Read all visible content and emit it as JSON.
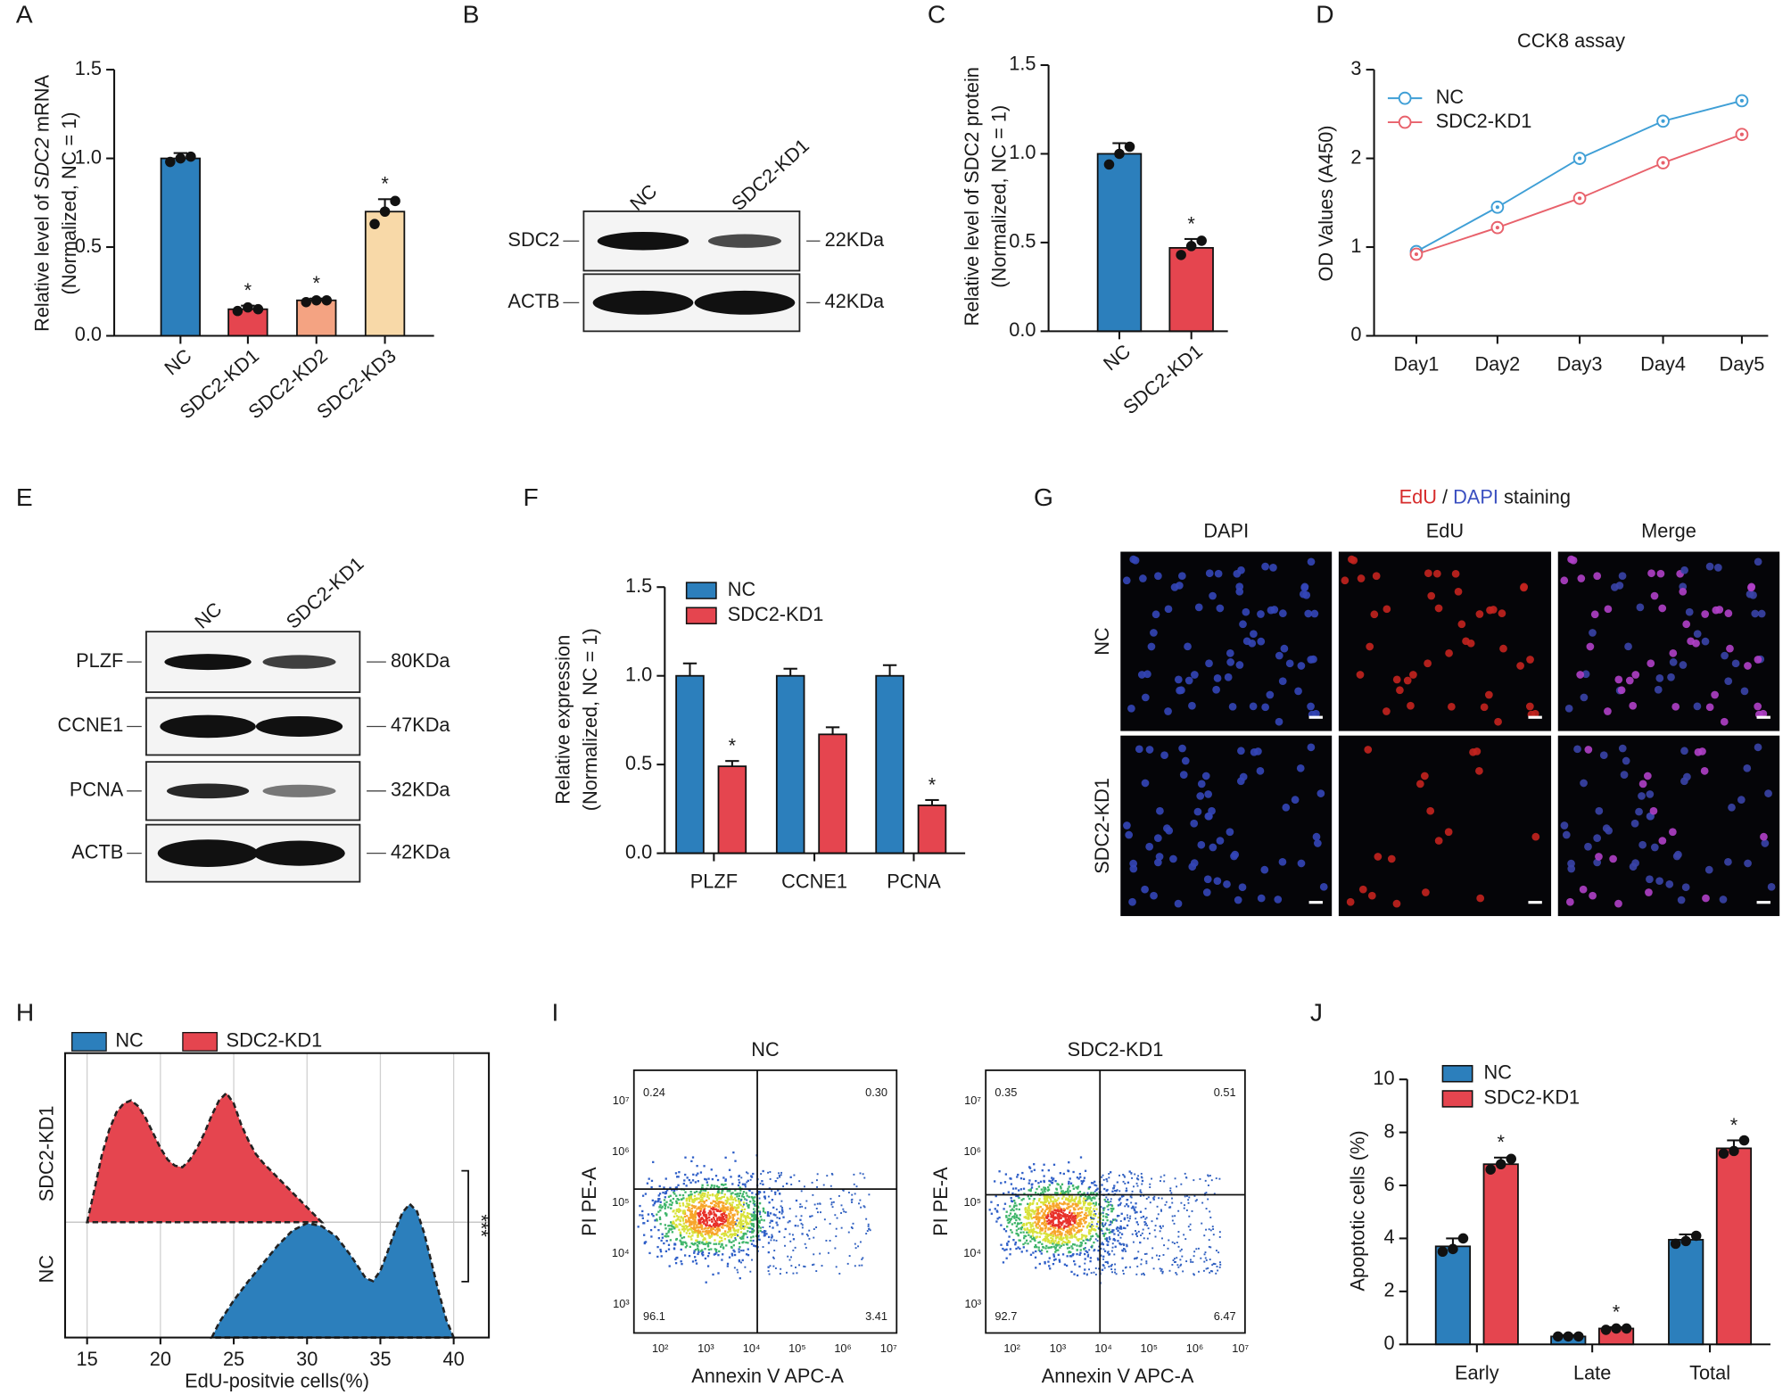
{
  "chart_data": [
    {
      "type": "bar",
      "panel": "A",
      "ylabel_parts": [
        "Relative level of ",
        "SDC2",
        " mRNA"
      ],
      "ylabel2": "(Normalized, NC = 1)",
      "categories": [
        "NC",
        "SDC2-KD1",
        "SDC2-KD2",
        "SDC2-KD3"
      ],
      "values": [
        1.0,
        0.15,
        0.2,
        0.7
      ],
      "errors": [
        0.03,
        0.02,
        0.01,
        0.07
      ],
      "points": [
        [
          0.98,
          1.0,
          1.01
        ],
        [
          0.14,
          0.16,
          0.15
        ],
        [
          0.19,
          0.2,
          0.2
        ],
        [
          0.63,
          0.7,
          0.76
        ]
      ],
      "significance": [
        null,
        "*",
        "*",
        "*"
      ],
      "colors": [
        "#2c7fbc",
        "#e5454f",
        "#f4a382",
        "#f8d9a8"
      ],
      "ylim": [
        0,
        1.5
      ],
      "yticks": [
        {
          "value": 0,
          "label": "0.0"
        },
        0.5,
        {
          "value": 1,
          "label": "1.0"
        },
        1.5
      ]
    },
    {
      "type": "bar",
      "panel": "C",
      "ylabel": "Relative level of SDC2 protein",
      "ylabel2": "(Normalized, NC = 1)",
      "categories": [
        "NC",
        "SDC2-KD1"
      ],
      "values": [
        1.0,
        0.47
      ],
      "errors": [
        0.06,
        0.05
      ],
      "points": [
        [
          0.94,
          1.0,
          1.04
        ],
        [
          0.43,
          0.48,
          0.51
        ]
      ],
      "significance": [
        null,
        "*"
      ],
      "colors": [
        "#2c7fbc",
        "#e5454f"
      ],
      "ylim": [
        0,
        1.5
      ],
      "yticks": [
        {
          "value": 0,
          "label": "0.0"
        },
        0.5,
        {
          "value": 1,
          "label": "1.0"
        },
        1.5
      ]
    },
    {
      "type": "line",
      "panel": "D",
      "title": "CCK8 assay",
      "ylabel": "OD Values (A450)",
      "categories": [
        "Day1",
        "Day2",
        "Day3",
        "Day4",
        "Day5"
      ],
      "series": [
        {
          "name": "NC",
          "color": "#3f9fd6",
          "values": [
            0.95,
            1.45,
            2.0,
            2.42,
            2.65
          ]
        },
        {
          "name": "SDC2-KD1",
          "color": "#e8616b",
          "values": [
            0.92,
            1.22,
            1.55,
            1.95,
            2.27
          ]
        }
      ],
      "legend": "upper left",
      "ylim": [
        0,
        3
      ],
      "yticks": [
        0,
        1,
        2,
        3
      ]
    },
    {
      "type": "grouped_bar",
      "panel": "F",
      "ylabel": "Relative expression",
      "ylabel2": "(Normalized, NC = 1)",
      "categories": [
        "PLZF",
        "CCNE1",
        "PCNA"
      ],
      "series": [
        {
          "name": "NC",
          "color": "#2c7fbc",
          "values": [
            1.0,
            1.0,
            1.0
          ],
          "errors": [
            0.07,
            0.04,
            0.06
          ],
          "significance": [
            null,
            null,
            null
          ]
        },
        {
          "name": "SDC2-KD1",
          "color": "#e5454f",
          "values": [
            0.49,
            0.67,
            0.27
          ],
          "errors": [
            0.03,
            0.04,
            0.03
          ],
          "significance": [
            "*",
            null,
            "*"
          ]
        }
      ],
      "legend": "upper left",
      "ylim": [
        0,
        1.5
      ],
      "yticks": [
        {
          "value": 0,
          "label": "0.0"
        },
        0.5,
        {
          "value": 1,
          "label": "1.0"
        },
        1.5
      ]
    },
    {
      "type": "ridgeline",
      "panel": "H",
      "xlabel": "EdU-positvie cells(%)",
      "series": [
        {
          "name": "SDC2-KD1",
          "color": "#e5454f",
          "x": [
            15,
            15.5,
            16,
            16.5,
            17,
            17.5,
            18,
            18.5,
            19,
            19.5,
            20,
            20.5,
            21,
            21.5,
            22,
            22.5,
            23,
            23.5,
            24,
            24.5,
            25,
            25.5,
            26,
            26.5,
            27,
            28,
            29,
            30,
            31
          ],
          "values": [
            0,
            0.22,
            0.45,
            0.62,
            0.74,
            0.8,
            0.82,
            0.78,
            0.7,
            0.6,
            0.5,
            0.42,
            0.38,
            0.37,
            0.42,
            0.5,
            0.6,
            0.72,
            0.82,
            0.87,
            0.8,
            0.66,
            0.55,
            0.46,
            0.4,
            0.3,
            0.2,
            0.1,
            0
          ]
        },
        {
          "name": "NC",
          "color": "#2c7fbc",
          "x": [
            23.5,
            24,
            25,
            26,
            27,
            28,
            29,
            30,
            31,
            32,
            33,
            34,
            34.5,
            35,
            35.5,
            36,
            36.5,
            37,
            37.5,
            38,
            38.5,
            39,
            39.5,
            40
          ],
          "values": [
            0,
            0.1,
            0.25,
            0.38,
            0.5,
            0.62,
            0.72,
            0.77,
            0.75,
            0.68,
            0.55,
            0.4,
            0.38,
            0.45,
            0.58,
            0.72,
            0.84,
            0.9,
            0.85,
            0.7,
            0.5,
            0.3,
            0.12,
            0
          ]
        }
      ],
      "significance": "***",
      "xlim": [
        13.5,
        42.4
      ],
      "xticks": [
        15,
        20,
        25,
        30,
        35,
        40
      ],
      "grid": true,
      "legend": "top"
    },
    {
      "type": "grouped_bar",
      "panel": "J",
      "ylabel": "Apoptotic cells (%)",
      "categories": [
        "Early",
        "Late",
        "Total"
      ],
      "series": [
        {
          "name": "NC",
          "color": "#2c7fbc",
          "values": [
            3.7,
            0.3,
            3.95
          ],
          "errors": [
            0.3,
            0.05,
            0.2
          ],
          "points": [
            [
              3.5,
              3.6,
              4.0
            ],
            [
              0.3,
              0.3,
              0.3
            ],
            [
              3.8,
              3.9,
              4.1
            ]
          ],
          "significance": [
            null,
            null,
            null
          ]
        },
        {
          "name": "SDC2-KD1",
          "color": "#e5454f",
          "values": [
            6.8,
            0.6,
            7.4
          ],
          "errors": [
            0.25,
            0.05,
            0.3
          ],
          "points": [
            [
              6.6,
              6.8,
              7.0
            ],
            [
              0.55,
              0.6,
              0.6
            ],
            [
              7.2,
              7.3,
              7.7
            ]
          ],
          "significance": [
            "*",
            "*",
            "*"
          ]
        }
      ],
      "legend": "upper left",
      "ylim": [
        0,
        10
      ],
      "yticks": [
        0,
        2,
        4,
        6,
        8,
        10
      ]
    }
  ],
  "blots": [
    {
      "panel": "B",
      "lanes": [
        "NC",
        "SDC2-KD1"
      ],
      "rows": [
        {
          "protein": "SDC2",
          "size": "22KDa"
        },
        {
          "protein": "ACTB",
          "size": "42KDa"
        }
      ]
    },
    {
      "panel": "E",
      "lanes": [
        "NC",
        "SDC2-KD1"
      ],
      "rows": [
        {
          "protein": "PLZF",
          "size": "80KDa"
        },
        {
          "protein": "CCNE1",
          "size": "47KDa"
        },
        {
          "protein": "PCNA",
          "size": "32KDa"
        },
        {
          "protein": "ACTB",
          "size": "42KDa"
        }
      ]
    }
  ],
  "imaging": {
    "panel": "G",
    "title_parts": [
      "EdU",
      " / ",
      "DAPI",
      " staining"
    ],
    "columns": [
      "DAPI",
      "EdU",
      "Merge"
    ],
    "rows": [
      "NC",
      "SDC2-KD1"
    ]
  },
  "flow": {
    "panel": "I",
    "xlabel": "Annexin V APC-A",
    "ylabel": "PI PE-A",
    "xtick_labels": [
      "10²",
      "10³",
      "10⁴",
      "10⁵",
      "10⁶",
      "10⁷"
    ],
    "ytick_labels": [
      "10³",
      "10⁴",
      "10⁵",
      "10⁶",
      "10⁷"
    ],
    "plots": [
      {
        "title": "NC",
        "quadrants": [
          "0.24",
          "0.30",
          "96.1",
          "3.41"
        ]
      },
      {
        "title": "SDC2-KD1",
        "quadrants": [
          "0.35",
          "0.51",
          "92.7",
          "6.47"
        ]
      }
    ]
  }
}
